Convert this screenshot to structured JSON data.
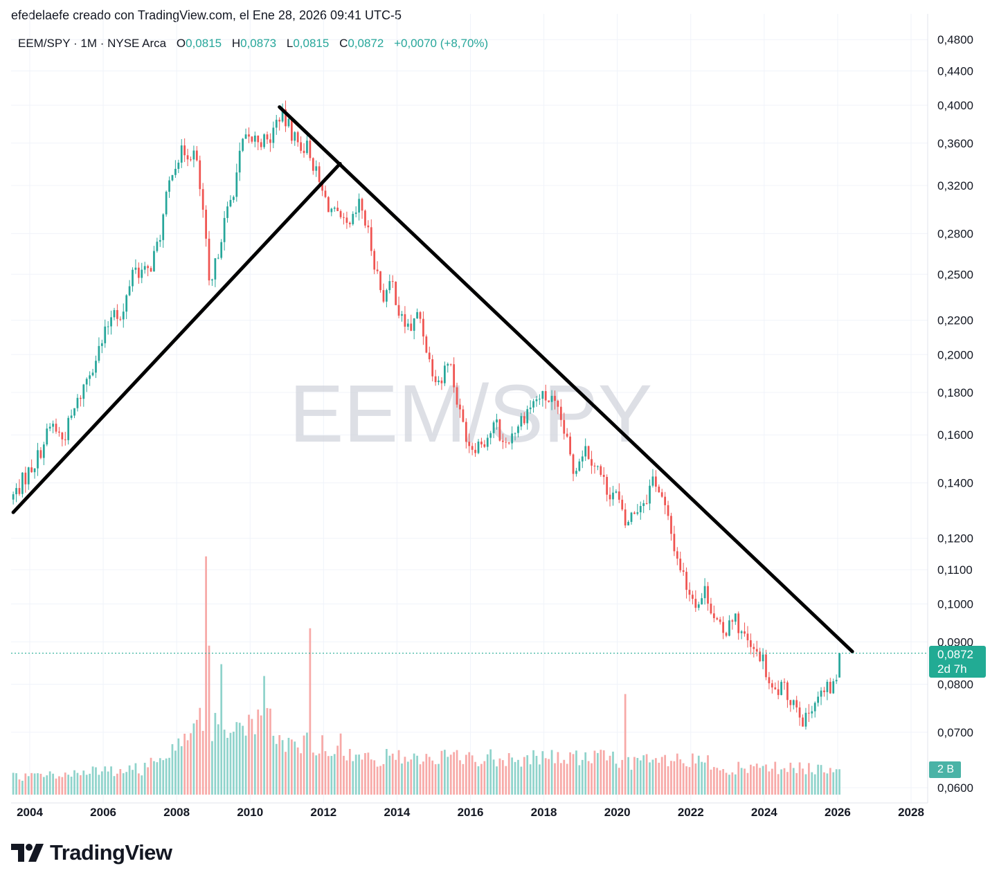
{
  "caption": "efedelaefe creado con TradingView.com, el Ene 28, 2026 09:41 UTC-5",
  "legend": {
    "symbol": "EEM/SPY · 1M · NYSE Arca",
    "open_label": "O",
    "open": "0,0815",
    "high_label": "H",
    "high": "0,0873",
    "low_label": "L",
    "low": "0,0815",
    "close_label": "C",
    "close": "0,0872",
    "change": "+0,0070 (+8,70%)"
  },
  "watermark": "EEM/SPY",
  "brand": {
    "name": "TradingView",
    "icon": "tradingview-logo-icon"
  },
  "last_price_badge": {
    "price": "0,0872",
    "countdown": "2d 7h"
  },
  "volume_badge": "2 B",
  "colors": {
    "up": "#26a69a",
    "down": "#ef5350",
    "vol_up": "#8fd3cb",
    "vol_down": "#f7a9a7",
    "trendline": "#000000",
    "last_price": "#22ab94"
  },
  "chart_data": {
    "type": "candlestick",
    "scale": "log",
    "interval": "1M",
    "ylim": [
      0.06,
      0.5
    ],
    "y_ticks": [
      0.48,
      0.44,
      0.4,
      0.36,
      0.32,
      0.28,
      0.25,
      0.22,
      0.2,
      0.18,
      0.16,
      0.14,
      0.12,
      0.11,
      0.1,
      0.09,
      0.08,
      0.07,
      0.06
    ],
    "y_tick_labels": [
      "0,4800",
      "0,4400",
      "0,4000",
      "0,3600",
      "0,3200",
      "0,2800",
      "0,2500",
      "0,2200",
      "0,2000",
      "0,1800",
      "0,1600",
      "0,1400",
      "0,1200",
      "0,1100",
      "0,1000",
      "0,0900",
      "0,0800",
      "0,0700",
      "0,0600"
    ],
    "x_ticks": [
      2004,
      2006,
      2008,
      2010,
      2012,
      2014,
      2016,
      2018,
      2020,
      2022,
      2024,
      2026,
      2028
    ],
    "x_tick_labels": [
      "2004",
      "2006",
      "2008",
      "2010",
      "2012",
      "2014",
      "2016",
      "2018",
      "2020",
      "2022",
      "2024",
      "2026",
      "2028"
    ],
    "xlim": [
      2003.5,
      2028.6
    ],
    "grid": true,
    "last_price": 0.0872,
    "price_path": [
      [
        2003.55,
        0.135
      ],
      [
        2004.2,
        0.15
      ],
      [
        2004.6,
        0.165
      ],
      [
        2004.9,
        0.158
      ],
      [
        2005.3,
        0.175
      ],
      [
        2005.6,
        0.19
      ],
      [
        2006.0,
        0.208
      ],
      [
        2006.3,
        0.23
      ],
      [
        2006.5,
        0.218
      ],
      [
        2006.8,
        0.255
      ],
      [
        2007.2,
        0.25
      ],
      [
        2007.5,
        0.272
      ],
      [
        2007.9,
        0.34
      ],
      [
        2008.2,
        0.352
      ],
      [
        2008.5,
        0.35
      ],
      [
        2008.75,
        0.29
      ],
      [
        2008.9,
        0.235
      ],
      [
        2009.2,
        0.278
      ],
      [
        2009.5,
        0.31
      ],
      [
        2009.8,
        0.36
      ],
      [
        2010.2,
        0.365
      ],
      [
        2010.5,
        0.36
      ],
      [
        2010.8,
        0.39
      ],
      [
        2011.0,
        0.38
      ],
      [
        2011.3,
        0.36
      ],
      [
        2011.6,
        0.355
      ],
      [
        2011.8,
        0.33
      ],
      [
        2012.0,
        0.31
      ],
      [
        2012.4,
        0.29
      ],
      [
        2012.7,
        0.282
      ],
      [
        2013.0,
        0.305
      ],
      [
        2013.3,
        0.27
      ],
      [
        2013.6,
        0.235
      ],
      [
        2013.9,
        0.243
      ],
      [
        2014.1,
        0.22
      ],
      [
        2014.4,
        0.215
      ],
      [
        2014.6,
        0.225
      ],
      [
        2014.9,
        0.195
      ],
      [
        2015.2,
        0.185
      ],
      [
        2015.4,
        0.2
      ],
      [
        2015.7,
        0.17
      ],
      [
        2016.0,
        0.155
      ],
      [
        2016.4,
        0.158
      ],
      [
        2016.7,
        0.165
      ],
      [
        2016.9,
        0.155
      ],
      [
        2017.3,
        0.165
      ],
      [
        2017.6,
        0.173
      ],
      [
        2017.9,
        0.178
      ],
      [
        2018.2,
        0.176
      ],
      [
        2018.5,
        0.165
      ],
      [
        2018.8,
        0.145
      ],
      [
        2019.1,
        0.155
      ],
      [
        2019.4,
        0.148
      ],
      [
        2019.7,
        0.138
      ],
      [
        2020.0,
        0.135
      ],
      [
        2020.2,
        0.124
      ],
      [
        2020.5,
        0.13
      ],
      [
        2020.8,
        0.135
      ],
      [
        2021.0,
        0.143
      ],
      [
        2021.3,
        0.13
      ],
      [
        2021.6,
        0.115
      ],
      [
        2021.9,
        0.105
      ],
      [
        2022.2,
        0.1
      ],
      [
        2022.4,
        0.104
      ],
      [
        2022.7,
        0.095
      ],
      [
        2022.9,
        0.091
      ],
      [
        2023.1,
        0.098
      ],
      [
        2023.4,
        0.092
      ],
      [
        2023.7,
        0.087
      ],
      [
        2023.9,
        0.087
      ],
      [
        2024.2,
        0.078
      ],
      [
        2024.5,
        0.079
      ],
      [
        2024.7,
        0.077
      ],
      [
        2024.9,
        0.076
      ],
      [
        2025.1,
        0.0715
      ],
      [
        2025.3,
        0.076
      ],
      [
        2025.6,
        0.078
      ],
      [
        2025.8,
        0.079
      ],
      [
        2025.95,
        0.0802
      ],
      [
        2026.07,
        0.0872
      ]
    ],
    "trendlines": [
      {
        "name": "support",
        "start": [
          2003.55,
          0.129
        ],
        "end": [
          2012.45,
          0.34
        ]
      },
      {
        "name": "resistance",
        "start": [
          2010.8,
          0.398
        ],
        "end": [
          2026.4,
          0.0876
        ]
      }
    ],
    "volume": {
      "spikes": [
        [
          2008.85,
          0.5
        ],
        [
          2011.65,
          0.41
        ],
        [
          2010.4,
          0.38
        ],
        [
          2009.2,
          0.35
        ],
        [
          2020.2,
          0.27
        ]
      ]
    }
  }
}
